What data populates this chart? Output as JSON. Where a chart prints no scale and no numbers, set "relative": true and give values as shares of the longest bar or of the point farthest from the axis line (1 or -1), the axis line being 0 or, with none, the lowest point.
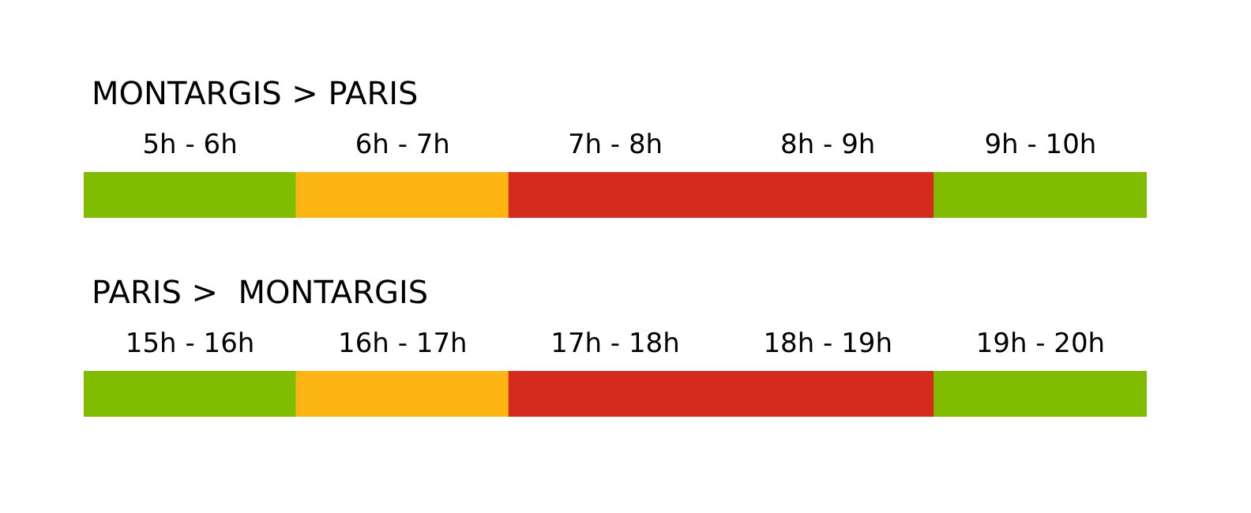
{
  "chart_data": [
    {
      "type": "bar",
      "title": "MONTARGIS > PARIS",
      "relative": true,
      "categories": [
        "5h - 6h",
        "6h - 7h",
        "7h - 8h",
        "8h - 9h",
        "9h - 10h"
      ],
      "values": [
        1,
        1,
        1,
        1,
        1
      ],
      "colors": [
        "#80bd00",
        "#fdb514",
        "#d52b1e",
        "#d52b1e",
        "#80bd00"
      ]
    },
    {
      "type": "bar",
      "title": "PARIS >  MONTARGIS",
      "relative": true,
      "categories": [
        "15h - 16h",
        "16h - 17h",
        "17h - 18h",
        "18h - 19h",
        "19h - 20h"
      ],
      "values": [
        1,
        1,
        1,
        1,
        1
      ],
      "colors": [
        "#80bd00",
        "#fdb514",
        "#d52b1e",
        "#d52b1e",
        "#80bd00"
      ]
    }
  ]
}
